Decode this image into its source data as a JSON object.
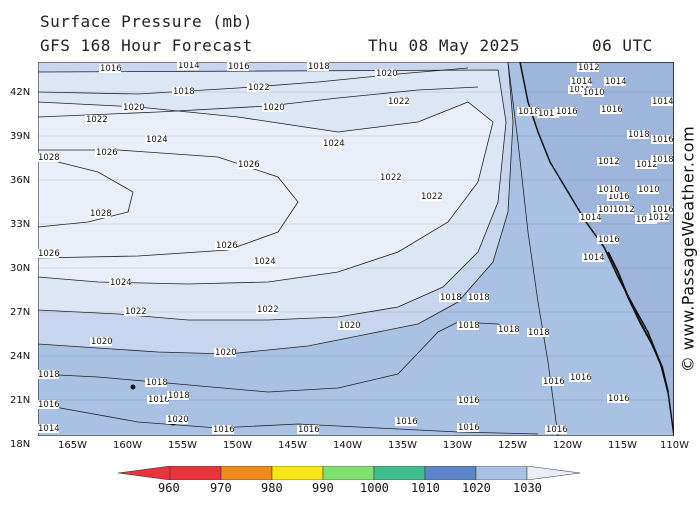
{
  "header": {
    "title": "Surface Pressure (mb)",
    "subtitle": "GFS 168 Hour Forecast",
    "date": "Thu 08 May 2025",
    "time": "06 UTC"
  },
  "map": {
    "lat_labels": [
      "42N",
      "39N",
      "36N",
      "33N",
      "30N",
      "27N",
      "24N",
      "21N",
      "18N"
    ],
    "lon_labels": [
      "165W",
      "160W",
      "155W",
      "150W",
      "145W",
      "140W",
      "135W",
      "130W",
      "125W",
      "120W",
      "115W",
      "110W"
    ],
    "isobar_labels": [
      "1016",
      "1014",
      "1016",
      "1018",
      "1020",
      "1018",
      "1020",
      "1022",
      "1022",
      "1020",
      "1022",
      "1024",
      "1026",
      "1026",
      "1024",
      "1028",
      "1022",
      "1022",
      "1028",
      "1026",
      "1024",
      "1026",
      "1024",
      "1022",
      "1022",
      "1020",
      "1020",
      "1020",
      "1018",
      "1018",
      "1018",
      "1018",
      "1018",
      "1018",
      "1016",
      "1016",
      "1018",
      "1020",
      "1016",
      "1016",
      "1016",
      "1016",
      "1016",
      "1016",
      "1018",
      "1016",
      "1016",
      "1016",
      "1014",
      "1018",
      "1016",
      "1016",
      "1016",
      "1014",
      "1012",
      "1010",
      "1014",
      "1016",
      "1018",
      "1012",
      "1014",
      "1016",
      "1012",
      "1010",
      "1012",
      "1014",
      "1016",
      "1018",
      "1010",
      "1012",
      "1014",
      "1016",
      "1014",
      "1016",
      "1012"
    ],
    "colors": {
      "ocean_low": "#a9c1e3",
      "ocean_mid": "#c7d6ee",
      "high_core": "#e9eef9",
      "land": "#9fb6dc"
    }
  },
  "colorbar": {
    "labels": [
      "960",
      "970",
      "980",
      "990",
      "1000",
      "1010",
      "1020",
      "1030"
    ],
    "colors": [
      "#e8343a",
      "#f08a1c",
      "#f7e51a",
      "#7fe06e",
      "#3fbf8e",
      "#5c86c9",
      "#a9c1e3",
      "#e9eef9"
    ]
  },
  "watermark": "© www.PassageWeather.com"
}
